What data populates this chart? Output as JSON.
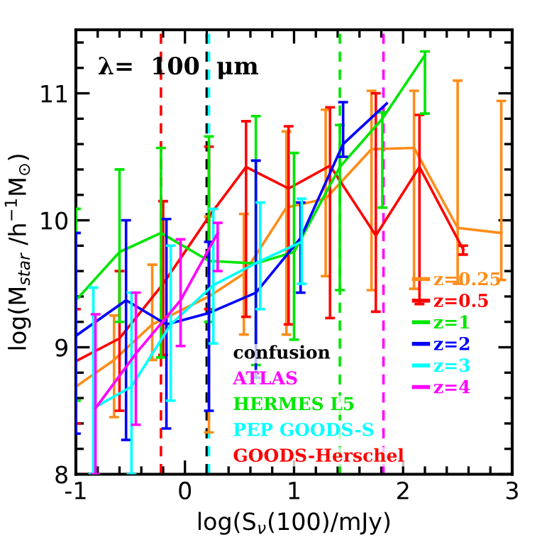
{
  "chart_data": {
    "type": "line",
    "xlabel": "log(S$_{ν}$(100)/mJy)",
    "ylabel": "log(M$_{star}$ /h$^{−1}$M$_{⊙}$)",
    "annotations": [
      "λ=  100  μm"
    ],
    "xlim": [
      -1,
      3
    ],
    "ylim": [
      8,
      11.5
    ],
    "xticks": [
      -1,
      0,
      1,
      2,
      3
    ],
    "yticks": [
      8,
      9,
      10,
      11
    ],
    "grid": false,
    "legend": "right",
    "marker": "none",
    "line_style": "solid",
    "series": [
      {
        "name": "z=0.25",
        "color": "#ff8c1a",
        "x": [
          -1.0,
          -0.65,
          -0.3,
          0.22,
          0.54,
          0.93,
          1.29,
          1.71,
          2.1,
          2.5,
          2.9
        ],
        "values": [
          8.69,
          8.9,
          9.18,
          9.4,
          9.58,
          10.1,
          10.17,
          10.56,
          10.57,
          9.94,
          9.9
        ],
        "errors": [
          null,
          [
            8.45,
            9.25
          ],
          [
            8.9,
            9.65
          ],
          [
            8.33,
            10.03
          ],
          [
            9.1,
            10.05
          ],
          [
            9.1,
            10.7
          ],
          [
            9.56,
            10.87
          ],
          [
            9.45,
            11.02
          ],
          [
            9.46,
            11.02
          ],
          [
            9.5,
            11.1
          ],
          [
            9.53,
            10.94
          ]
        ]
      },
      {
        "name": "z=0.5",
        "color": "#ff0000",
        "x": [
          -1.0,
          -0.6,
          -0.2,
          0.22,
          0.56,
          0.95,
          1.33,
          1.75,
          2.15,
          2.55
        ],
        "values": [
          8.89,
          9.07,
          9.5,
          10.03,
          10.42,
          10.25,
          10.43,
          9.88,
          10.42,
          9.77
        ],
        "errors": [
          [
            8.4,
            9.3
          ],
          [
            8.5,
            9.6
          ],
          [
            8.94,
            10.15
          ],
          [
            9.3,
            10.58
          ],
          [
            9.24,
            10.78
          ],
          [
            9.18,
            10.74
          ],
          [
            9.23,
            10.89
          ],
          [
            9.28,
            11.0
          ],
          [
            9.34,
            10.83
          ],
          [
            9.73,
            9.8
          ]
        ]
      },
      {
        "name": "z=1",
        "color": "#00e600",
        "x": [
          -1.0,
          -0.6,
          -0.22,
          0.22,
          0.65,
          1.0,
          1.42,
          1.81,
          2.2
        ],
        "values": [
          9.37,
          9.75,
          9.9,
          9.68,
          9.66,
          9.75,
          10.42,
          10.8,
          11.3
        ],
        "errors": [
          [
            8.58,
            10.09
          ],
          [
            9.2,
            10.4
          ],
          [
            8.92,
            10.57
          ],
          [
            9.2,
            10.66
          ],
          [
            8.86,
            10.82
          ],
          [
            9.06,
            10.53
          ],
          [
            9.45,
            10.75
          ],
          [
            10.1,
            10.85
          ],
          [
            10.84,
            11.33
          ]
        ]
      },
      {
        "name": "z=2",
        "color": "#0000ff",
        "x": [
          -1.0,
          -0.54,
          -0.17,
          0.22,
          0.65,
          1.06,
          1.45,
          1.85
        ],
        "values": [
          9.09,
          9.37,
          9.18,
          9.27,
          9.43,
          9.86,
          10.6,
          10.92
        ],
        "errors": [
          [
            8.32,
            9.9
          ],
          [
            8.27,
            10.0
          ],
          [
            8.36,
            10.01
          ],
          [
            8.5,
            9.83
          ],
          [
            8.76,
            10.47
          ],
          [
            9.43,
            10.14
          ],
          [
            10.5,
            10.93
          ],
          null
        ]
      },
      {
        "name": "z=3",
        "color": "#00ffff",
        "x": [
          -0.84,
          -0.49,
          -0.13,
          0.26,
          0.69,
          1.07
        ],
        "values": [
          8.52,
          8.69,
          9.18,
          9.49,
          9.68,
          9.83
        ],
        "errors": [
          [
            8.0,
            9.47
          ],
          [
            8.0,
            9.43
          ],
          [
            8.58,
            9.8
          ],
          [
            9.03,
            10.09
          ],
          [
            9.3,
            10.14
          ],
          [
            9.5,
            10.17
          ]
        ]
      },
      {
        "name": "z=4",
        "color": "#ff00ff",
        "x": [
          -0.82,
          -0.45,
          -0.04,
          0.3
        ],
        "values": [
          8.52,
          8.95,
          9.37,
          9.9
        ],
        "errors": [
          [
            8.0,
            9.26
          ],
          [
            8.39,
            9.43
          ],
          [
            9.01,
            9.85
          ],
          [
            9.6,
            9.98
          ]
        ]
      }
    ],
    "ref_lines": [
      {
        "axis": "x",
        "value": 0.2,
        "label": "confusion",
        "color": "#000000",
        "line_style": "dashed"
      },
      {
        "axis": "x",
        "value": 1.82,
        "label": "ATLAS",
        "color": "#ff00ff",
        "line_style": "dashed"
      },
      {
        "axis": "x",
        "value": 1.42,
        "label": "HERMES L5",
        "color": "#00e600",
        "line_style": "dashed"
      },
      {
        "axis": "x",
        "value": 0.22,
        "label": "PEP GOODS-S",
        "color": "#00ffff",
        "line_style": "dashed"
      },
      {
        "axis": "x",
        "value": -0.22,
        "label": "GOODS-Herschel",
        "color": "#ff0000",
        "line_style": "dashed"
      }
    ]
  }
}
